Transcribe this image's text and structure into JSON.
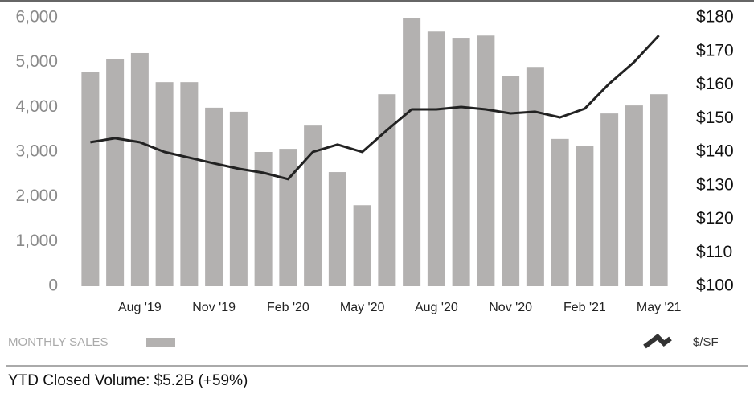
{
  "chart_data": {
    "type": "bar_line",
    "categories": [
      null,
      null,
      "Aug '19",
      null,
      null,
      "Nov '19",
      null,
      null,
      "Feb '20",
      null,
      null,
      "May '20",
      null,
      null,
      "Aug '20",
      null,
      null,
      "Nov '20",
      null,
      null,
      "Feb '21",
      null,
      null,
      "May '21"
    ],
    "series": [
      {
        "name": "MONTHLY SALES",
        "color": "#b3b1b0",
        "type": "bar",
        "values": [
          4780,
          5080,
          5210,
          4560,
          4560,
          3990,
          3900,
          3000,
          3070,
          3590,
          2550,
          1810,
          4290,
          6000,
          5690,
          5550,
          5600,
          4690,
          4900,
          3290,
          3130,
          3860,
          4040,
          4290
        ]
      },
      {
        "name": "$/SF",
        "color": "#222222",
        "type": "line",
        "axis": "y2",
        "values": [
          142.9,
          144.1,
          142.9,
          140.0,
          138.3,
          136.6,
          135.0,
          133.8,
          131.9,
          140.0,
          142.2,
          140.0,
          146.5,
          152.7,
          152.7,
          153.4,
          152.7,
          151.5,
          152.0,
          150.3,
          152.9,
          160.4,
          166.8,
          174.7
        ]
      }
    ],
    "ylim": [
      0,
      6000
    ],
    "yticks": [
      0,
      {
        "value": 1000,
        "label": "1,000"
      },
      {
        "value": 2000,
        "label": "2,000"
      },
      {
        "value": 3000,
        "label": "3,000"
      },
      {
        "value": 4000,
        "label": "4,000"
      },
      {
        "value": 5000,
        "label": "5,000"
      },
      {
        "value": 6000,
        "label": "6,000"
      }
    ],
    "y2lim": [
      100,
      180
    ],
    "y2ticks": [
      {
        "value": 100,
        "label": "$100"
      },
      {
        "value": 110,
        "label": "$110"
      },
      {
        "value": 120,
        "label": "$120"
      },
      {
        "value": 130,
        "label": "$130"
      },
      {
        "value": 140,
        "label": "$140"
      },
      {
        "value": 150,
        "label": "$150"
      },
      {
        "value": 160,
        "label": "$160"
      },
      {
        "value": 170,
        "label": "$170"
      },
      {
        "value": 180,
        "label": "$180"
      }
    ],
    "grid": false
  },
  "footer": "YTD Closed Volume: $5.2B (+59%)"
}
